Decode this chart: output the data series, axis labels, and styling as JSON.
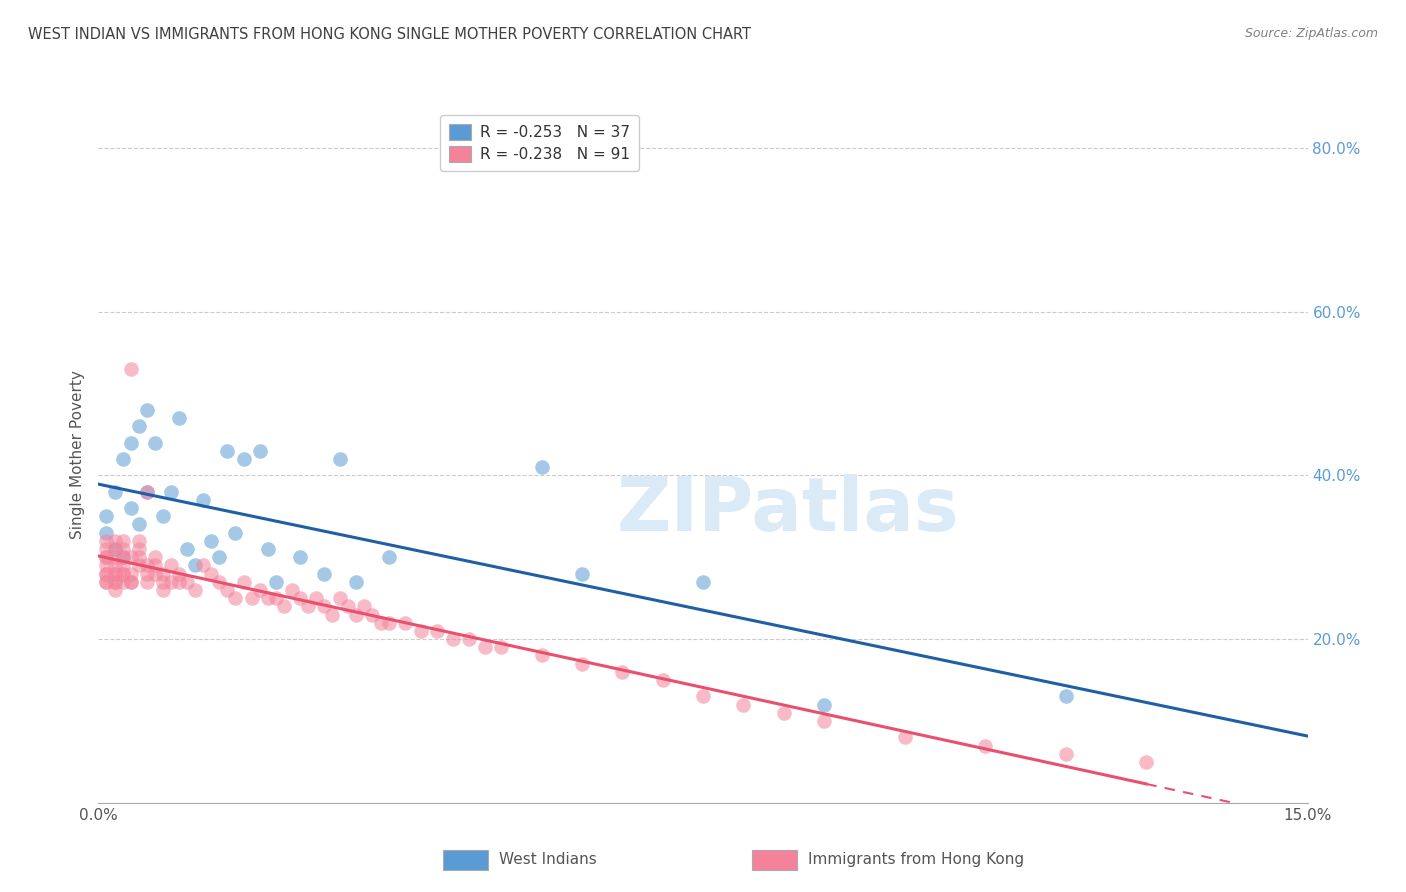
{
  "title": "WEST INDIAN VS IMMIGRANTS FROM HONG KONG SINGLE MOTHER POVERTY CORRELATION CHART",
  "source": "Source: ZipAtlas.com",
  "ylabel": "Single Mother Poverty",
  "xlim": [
    0.0,
    0.15
  ],
  "ylim": [
    0.0,
    0.85
  ],
  "watermark": "ZIPatlas",
  "legend_line1": "R = -0.253   N = 37",
  "legend_line2": "R = -0.238   N = 91",
  "bottom_legend_label1": "West Indians",
  "bottom_legend_label2": "Immigrants from Hong Kong",
  "west_indian_x": [
    0.001,
    0.001,
    0.002,
    0.002,
    0.003,
    0.003,
    0.004,
    0.004,
    0.005,
    0.005,
    0.006,
    0.006,
    0.007,
    0.008,
    0.009,
    0.01,
    0.011,
    0.012,
    0.013,
    0.014,
    0.015,
    0.016,
    0.017,
    0.018,
    0.02,
    0.021,
    0.022,
    0.025,
    0.028,
    0.03,
    0.032,
    0.036,
    0.055,
    0.06,
    0.075,
    0.09,
    0.12
  ],
  "west_indian_y": [
    0.33,
    0.35,
    0.31,
    0.38,
    0.3,
    0.42,
    0.36,
    0.44,
    0.34,
    0.46,
    0.48,
    0.38,
    0.44,
    0.35,
    0.38,
    0.47,
    0.31,
    0.29,
    0.37,
    0.32,
    0.3,
    0.43,
    0.33,
    0.42,
    0.43,
    0.31,
    0.27,
    0.3,
    0.28,
    0.42,
    0.27,
    0.3,
    0.41,
    0.28,
    0.27,
    0.12,
    0.13
  ],
  "hk_x": [
    0.001,
    0.001,
    0.001,
    0.001,
    0.001,
    0.001,
    0.001,
    0.001,
    0.001,
    0.002,
    0.002,
    0.002,
    0.002,
    0.002,
    0.002,
    0.002,
    0.002,
    0.002,
    0.003,
    0.003,
    0.003,
    0.003,
    0.003,
    0.003,
    0.003,
    0.004,
    0.004,
    0.004,
    0.004,
    0.004,
    0.005,
    0.005,
    0.005,
    0.005,
    0.006,
    0.006,
    0.006,
    0.006,
    0.007,
    0.007,
    0.007,
    0.008,
    0.008,
    0.008,
    0.009,
    0.009,
    0.01,
    0.01,
    0.011,
    0.012,
    0.013,
    0.014,
    0.015,
    0.016,
    0.017,
    0.018,
    0.019,
    0.02,
    0.021,
    0.022,
    0.023,
    0.024,
    0.025,
    0.026,
    0.027,
    0.028,
    0.029,
    0.03,
    0.031,
    0.032,
    0.033,
    0.034,
    0.035,
    0.036,
    0.038,
    0.04,
    0.042,
    0.044,
    0.046,
    0.048,
    0.05,
    0.055,
    0.06,
    0.065,
    0.07,
    0.075,
    0.08,
    0.085,
    0.09,
    0.1,
    0.11,
    0.12,
    0.13
  ],
  "hk_y": [
    0.28,
    0.3,
    0.31,
    0.32,
    0.27,
    0.29,
    0.3,
    0.28,
    0.27,
    0.29,
    0.31,
    0.32,
    0.28,
    0.27,
    0.3,
    0.28,
    0.27,
    0.26,
    0.32,
    0.3,
    0.28,
    0.27,
    0.29,
    0.31,
    0.28,
    0.3,
    0.27,
    0.53,
    0.28,
    0.27,
    0.32,
    0.31,
    0.3,
    0.29,
    0.29,
    0.28,
    0.27,
    0.38,
    0.3,
    0.29,
    0.28,
    0.28,
    0.27,
    0.26,
    0.29,
    0.27,
    0.28,
    0.27,
    0.27,
    0.26,
    0.29,
    0.28,
    0.27,
    0.26,
    0.25,
    0.27,
    0.25,
    0.26,
    0.25,
    0.25,
    0.24,
    0.26,
    0.25,
    0.24,
    0.25,
    0.24,
    0.23,
    0.25,
    0.24,
    0.23,
    0.24,
    0.23,
    0.22,
    0.22,
    0.22,
    0.21,
    0.21,
    0.2,
    0.2,
    0.19,
    0.19,
    0.18,
    0.17,
    0.16,
    0.15,
    0.13,
    0.12,
    0.11,
    0.1,
    0.08,
    0.07,
    0.06,
    0.05
  ],
  "blue_color": "#5b9bd5",
  "pink_color": "#f4829a",
  "blue_line_color": "#1f5fa6",
  "pink_line_color": "#e8506e",
  "bg_color": "#ffffff",
  "grid_color": "#cccccc",
  "title_color": "#404040",
  "source_color": "#808080",
  "right_axis_color": "#5b9bd5",
  "watermark_color": "#daeaf7"
}
